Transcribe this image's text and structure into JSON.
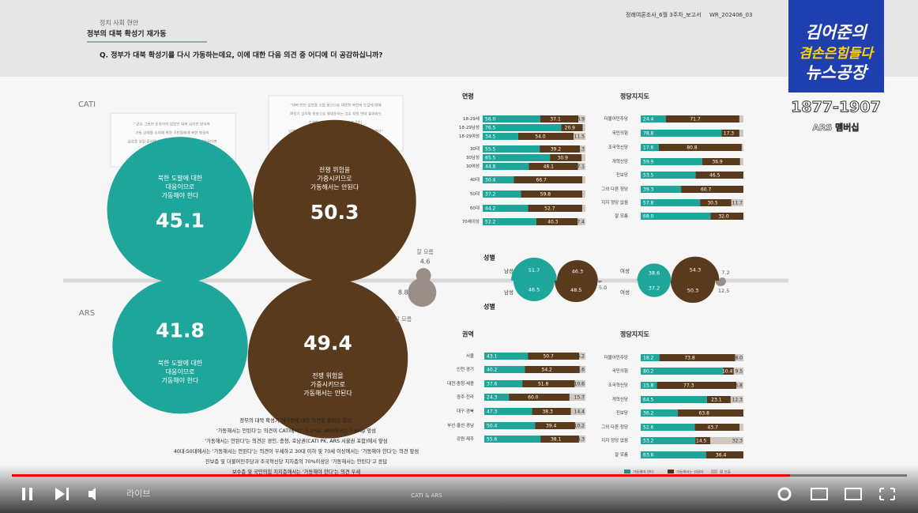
{
  "header": {
    "category": "정치 사회 현안",
    "title": "정부의 대북 확성기 재가동",
    "question": "Q. 정부가 대북 확성기를 다시 가동하는데요, 이에 대한 다음 의견 중 어디에 더 공감하십니까?",
    "report": "정례여론조사_6월 3주차_보고서",
    "code": "WR_202406_03"
  },
  "overlay": {
    "logo": [
      "김어준의",
      "겸손은힘들다",
      "뉴스공장"
    ],
    "phone": "1877-1907",
    "badge": "ARS 멤버십"
  },
  "quotes": [
    [
      "\"군은 그동안 운용하지 않았던 대북 심리전 방식의",
      "가동 상태를 유지해 북한 주민들에게 북한 정권의",
      "실상을 알릴 준비를 완료하고, 다시 오물 풍선이 날아온다면",
      "3배, 3배 북한으로 되돌려주겠다는 의지\"",
      "- 대통령실·국방부 등 2024년 6월 기자회견 발언"
    ],
    [
      "\"대북 전단 살포를 오물 풍선으로 대응한 북한의 도발에 대해",
      "확성기 설치와 방송으로 맞대응하는 것은 자칫 반대 결과라도",
      "초래할 수 있는 우한 행동 수도 있다.",
      "남북 긴 긴장을 고조시키는 행위는 신중에 신중을 기해야 한다\"",
      "- 더불어민주당 이재명 대표 6월 기자회견 중"
    ]
  ],
  "main": {
    "answers": [
      [
        "북한 도발에 대한",
        "대응이므로",
        "가동해야 한다"
      ],
      [
        "전쟁 위험을",
        "가중시키므로",
        "가동해서는 안된다"
      ],
      "잘 모름"
    ],
    "cati": {
      "label": "CATI",
      "values": [
        45.1,
        50.3,
        4.6
      ]
    },
    "ars": {
      "label": "ARS",
      "values": [
        41.8,
        49.4,
        8.8
      ]
    }
  },
  "cati_age": {
    "title": "연령",
    "rows": [
      {
        "label": "18-29세",
        "values": [
          56.0,
          37.1,
          6.9
        ],
        "value_labels": [
          "56.0",
          "37.1",
          "6.9"
        ]
      },
      {
        "label": "18-29남성",
        "values": [
          76.5,
          20.9,
          2.6
        ],
        "value_labels": [
          "76.5",
          "20.9",
          null
        ]
      },
      {
        "label": "18-29여성",
        "values": [
          34.5,
          54.0,
          11.5
        ],
        "value_labels": [
          "34.5",
          "54.0",
          "11.5"
        ]
      },
      {
        "label": "30대",
        "values": [
          55.5,
          39.2,
          5.3
        ],
        "value_labels": [
          "55.5",
          "39.2",
          "5.3"
        ]
      },
      {
        "label": "30남성",
        "values": [
          65.5,
          30.9,
          3.6
        ],
        "value_labels": [
          "65.5",
          "30.9",
          null
        ]
      },
      {
        "label": "30여성",
        "values": [
          44.8,
          48.1,
          7.1
        ],
        "value_labels": [
          "44.8",
          "48.1",
          "7.1"
        ]
      },
      {
        "label": "40대",
        "values": [
          30.4,
          66.7,
          2.9
        ],
        "value_labels": [
          "30.4",
          "66.7",
          null
        ]
      },
      {
        "label": "50대",
        "values": [
          37.2,
          59.8,
          3.0
        ],
        "value_labels": [
          "37.2",
          "59.8",
          null
        ]
      },
      {
        "label": "60대",
        "values": [
          44.2,
          52.7,
          3.1
        ],
        "value_labels": [
          "44.2",
          "52.7",
          null
        ]
      },
      {
        "label": "70세이상",
        "values": [
          52.2,
          40.3,
          7.4
        ],
        "value_labels": [
          "52.2",
          "40.3",
          "7.4"
        ]
      }
    ]
  },
  "cati_party": {
    "title": "정당지지도",
    "rows": [
      {
        "label": "더불어민주당",
        "values": [
          24.4,
          71.7,
          3.9
        ],
        "value_labels": [
          "24.4",
          "71.7",
          null
        ]
      },
      {
        "label": "국민의힘",
        "values": [
          78.8,
          17.3,
          3.9
        ],
        "value_labels": [
          "78.8",
          "17.3",
          null
        ]
      },
      {
        "label": "조국혁신당",
        "values": [
          17.6,
          80.8,
          1.6
        ],
        "value_labels": [
          "17.6",
          "80.8",
          null
        ]
      },
      {
        "label": "개혁신당",
        "values": [
          59.9,
          36.9,
          3.2
        ],
        "value_labels": [
          "59.9",
          "36.9",
          null
        ]
      },
      {
        "label": "진보당",
        "values": [
          53.5,
          46.5
        ],
        "value_labels": [
          "53.5",
          "46.5"
        ]
      },
      {
        "label": "그외 다른 정당",
        "values": [
          39.3,
          60.7
        ],
        "value_labels": [
          "39.3",
          "60.7"
        ]
      },
      {
        "label": "지지 정당 없음",
        "values": [
          57.8,
          30.5,
          11.7
        ],
        "value_labels": [
          "57.8",
          "30.5",
          "11.7"
        ]
      },
      {
        "label": "잘 모름",
        "values": [
          68.0,
          32.0
        ],
        "value_labels": [
          "68.0",
          "32.0"
        ]
      }
    ]
  },
  "gender": {
    "title": "성별",
    "rows": [
      {
        "label": "남성",
        "cati": [
          51.7,
          46.3
        ],
        "cati_labels": [
          "51.7",
          "46.3"
        ],
        "ars": [
          46.5,
          48.5,
          5.0
        ],
        "ars_labels": [
          "46.5",
          "48.5",
          "5.0"
        ]
      },
      {
        "label": "여성",
        "cati": [
          38.6,
          54.3,
          7.2
        ],
        "cati_labels": [
          "38.6",
          "54.3",
          "7.2"
        ],
        "ars": [
          37.2,
          50.3,
          12.5
        ],
        "ars_labels": [
          "37.2",
          "50.3",
          "12.5"
        ]
      }
    ]
  },
  "ars_region": {
    "title": "권역",
    "rows": [
      {
        "label": "서울",
        "values": [
          43.1,
          50.7,
          6.2
        ],
        "value_labels": [
          "43.1",
          "50.7",
          "6.2"
        ]
      },
      {
        "label": "인천·경기",
        "values": [
          40.2,
          54.2,
          5.6
        ],
        "value_labels": [
          "40.2",
          "54.2",
          "5.6"
        ]
      },
      {
        "label": "대전·충청·세종",
        "values": [
          37.6,
          51.8,
          10.6
        ],
        "value_labels": [
          "37.6",
          "51.8",
          "10.6"
        ]
      },
      {
        "label": "광주·전라",
        "values": [
          24.3,
          60.0,
          15.7
        ],
        "value_labels": [
          "24.3",
          "60.0",
          "15.7"
        ]
      },
      {
        "label": "대구·경북",
        "values": [
          47.3,
          38.3,
          14.4
        ],
        "value_labels": [
          "47.3",
          "38.3",
          "14.4"
        ]
      },
      {
        "label": "부산·울산·경남",
        "values": [
          50.4,
          39.4,
          10.2
        ],
        "value_labels": [
          "50.4",
          "39.4",
          "10.2"
        ]
      },
      {
        "label": "강원·제주",
        "values": [
          55.6,
          38.1,
          6.3
        ],
        "value_labels": [
          "55.6",
          "38.1",
          "6.3"
        ]
      }
    ]
  },
  "ars_party": {
    "title": "정당지지도",
    "rows": [
      {
        "label": "더불어민주당",
        "values": [
          18.2,
          73.8,
          8.0
        ],
        "value_labels": [
          "18.2",
          "73.8",
          "8.0"
        ]
      },
      {
        "label": "국민의힘",
        "values": [
          80.2,
          10.4,
          9.5
        ],
        "value_labels": [
          "80.2",
          "10.4",
          "9.5"
        ]
      },
      {
        "label": "조국혁신당",
        "values": [
          15.8,
          77.3,
          6.8
        ],
        "value_labels": [
          "15.8",
          "77.3",
          "6.8"
        ]
      },
      {
        "label": "개혁신당",
        "values": [
          64.5,
          23.1,
          12.3
        ],
        "value_labels": [
          "64.5",
          "23.1",
          "12.3"
        ]
      },
      {
        "label": "진보당",
        "values": [
          36.2,
          63.8
        ],
        "value_labels": [
          "36.2",
          "63.8"
        ]
      },
      {
        "label": "그외 다른 정당",
        "values": [
          52.6,
          43.7,
          3.7
        ],
        "value_labels": [
          "52.6",
          "43.7",
          null
        ]
      },
      {
        "label": "지지 정당 없음",
        "values": [
          53.2,
          14.5,
          32.3
        ],
        "value_labels": [
          "53.2",
          "14.5",
          "32.3"
        ]
      },
      {
        "label": "잘 모름",
        "values": [
          63.6,
          36.4
        ],
        "value_labels": [
          "63.6",
          "36.4"
        ]
      }
    ]
  },
  "legend": [
    "가동해야 한다",
    "가동해서는 안된다",
    "잘 모름"
  ],
  "summary": [
    "정부의 대북 확성기 재가동에 대한 의견을 물어본 결과,",
    "'가동해서는 안된다'는 의견이 CATI에서는 5.2%p, ARS에서는 7.6%p 앞섬",
    "'가동해서는 안된다'는 의견은 경인, 충청, 호남권(CATI PK, ARS 서울권 포함)에서 앞섬",
    "40대·50대에서는 '가동해서는 안된다'는 의견이 우세하고 30대 이하 및 70세 이상에서는 '가동해야 한다'는 의견 앞섬",
    "진보층 및 더불어민주당과 조국혁신당 지지층의 70%이상은 '가동해서는 안된다'고 응답",
    "보수층 및 국민의힘 지지층에서는 '가동해야 한다'는 의견 우세"
  ],
  "player": {
    "live": "라이브",
    "chapter": "CATI & ARS"
  }
}
